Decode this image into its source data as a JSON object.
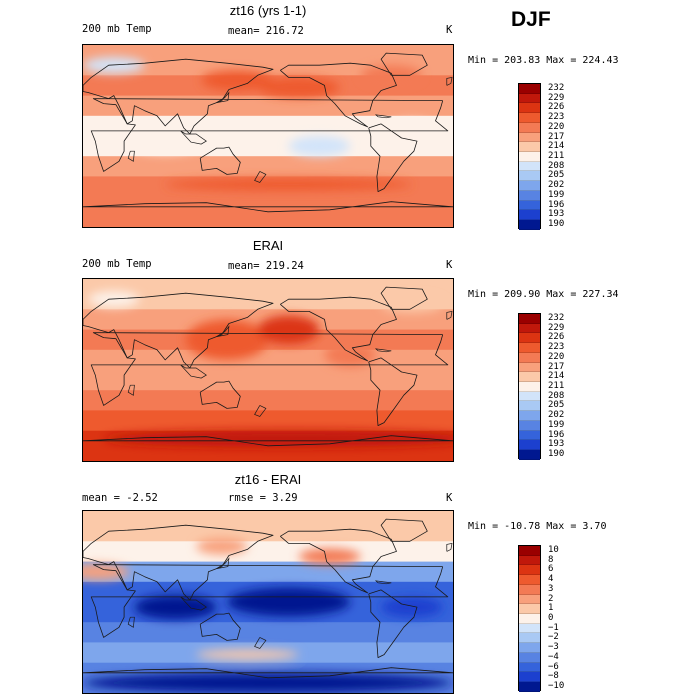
{
  "season": "DJF",
  "unit": "K",
  "panels": [
    {
      "id": "zt16",
      "title": "zt16 (yrs 1-1)",
      "left_label": "200 mb Temp",
      "center_label": "mean= 216.72",
      "unit": "K",
      "minmax": "Min = 203.83 Max = 224.43",
      "levels": [
        "232",
        "229",
        "226",
        "223",
        "220",
        "217",
        "214",
        "211",
        "208",
        "205",
        "202",
        "199",
        "196",
        "193",
        "190"
      ],
      "colors": [
        "#9a0000",
        "#c0180b",
        "#dc3412",
        "#ee5a2e",
        "#f37a54",
        "#f8a07c",
        "#fbc9a9",
        "#fdf2ea",
        "#d2e4fa",
        "#a9c9f4",
        "#7ea6ec",
        "#5883e2",
        "#3563db",
        "#1c40cf",
        "#001890"
      ]
    },
    {
      "id": "erai",
      "title": "ERAI",
      "left_label": "200 mb Temp",
      "center_label": "mean= 219.24",
      "unit": "K",
      "minmax": "Min = 209.90 Max = 227.34",
      "levels": [
        "232",
        "229",
        "226",
        "223",
        "220",
        "217",
        "214",
        "211",
        "208",
        "205",
        "202",
        "199",
        "196",
        "193",
        "190"
      ],
      "colors": [
        "#9a0000",
        "#c0180b",
        "#dc3412",
        "#ee5a2e",
        "#f37a54",
        "#f8a07c",
        "#fbc9a9",
        "#fdf2ea",
        "#d2e4fa",
        "#a9c9f4",
        "#7ea6ec",
        "#5883e2",
        "#3563db",
        "#1c40cf",
        "#001890"
      ]
    },
    {
      "id": "diff",
      "title": "zt16 - ERAI",
      "left_label": "mean =   -2.52",
      "center_label": "rmse =    3.29",
      "unit": "K",
      "minmax": "Min = -10.78 Max =    3.70",
      "levels": [
        "10",
        "8",
        "6",
        "4",
        "3",
        "2",
        "1",
        "0",
        "−1",
        "−2",
        "−3",
        "−4",
        "−6",
        "−8",
        "−10"
      ],
      "colors": [
        "#9a0000",
        "#c0180b",
        "#dc3412",
        "#ee5a2e",
        "#f37a54",
        "#f8a07c",
        "#fbc9a9",
        "#fdf2ea",
        "#d2e4fa",
        "#a9c9f4",
        "#7ea6ec",
        "#5883e2",
        "#3563db",
        "#1c40cf",
        "#001890"
      ]
    }
  ],
  "chart_data": [
    {
      "type": "heatmap",
      "title": "zt16 (yrs 1-1)",
      "variable": "200 mb Temp",
      "unit": "K",
      "mean": 216.72,
      "min": 203.83,
      "max": 224.43,
      "contour_levels": [
        190,
        193,
        196,
        199,
        202,
        205,
        208,
        211,
        214,
        217,
        220,
        223,
        226,
        229,
        232
      ],
      "lat_band_mean_K": {
        "90N": 216,
        "60N": 219,
        "40N": 222,
        "20N": 215,
        "0": 212,
        "20S": 215,
        "40S": 219,
        "60S": 223,
        "90S": 221
      }
    },
    {
      "type": "heatmap",
      "title": "ERAI",
      "variable": "200 mb Temp",
      "unit": "K",
      "mean": 219.24,
      "min": 209.9,
      "max": 227.34,
      "contour_levels": [
        190,
        193,
        196,
        199,
        202,
        205,
        208,
        211,
        214,
        217,
        220,
        223,
        226,
        229,
        232
      ],
      "lat_band_mean_K": {
        "90N": 213,
        "60N": 217,
        "40N": 221,
        "20N": 220,
        "0": 219,
        "20S": 220,
        "40S": 221,
        "60S": 225,
        "90S": 227
      }
    },
    {
      "type": "heatmap",
      "title": "zt16 - ERAI",
      "unit": "K",
      "mean": -2.52,
      "rmse": 3.29,
      "min": -10.78,
      "max": 3.7,
      "contour_levels": [
        -10,
        -8,
        -6,
        -4,
        -3,
        -2,
        -1,
        0,
        1,
        2,
        3,
        4,
        6,
        8,
        10
      ],
      "lat_band_mean_K": {
        "90N": 1,
        "60N": 2,
        "40N": -1,
        "20N": -5,
        "0": -7,
        "20S": -5,
        "40S": -3,
        "60S": -2,
        "90S": -6
      }
    }
  ]
}
